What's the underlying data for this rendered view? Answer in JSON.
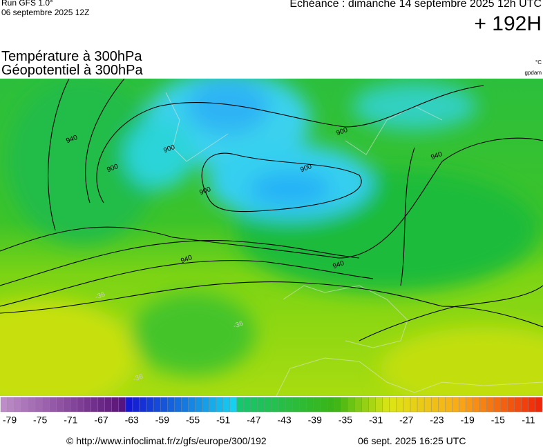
{
  "header": {
    "run": "Run GFS 1.0°",
    "run_date": "06 septembre 2025 12Z",
    "valid": "Echéance : dimanche 14 septembre 2025 12h UTC",
    "lead": "+ 192H",
    "title_1": "Température à 300hPa",
    "title_2": "Géopotentiel à 300hPa",
    "unit_1": "°C",
    "unit_2": "gpdam"
  },
  "map": {
    "contour_labels": [
      "940",
      "900",
      "900",
      "900",
      "900",
      "900",
      "940",
      "940",
      "940",
      "-36",
      "-36",
      "-36"
    ]
  },
  "legend": {
    "labels": [
      -79,
      -75,
      -71,
      -67,
      -63,
      -59,
      -55,
      -51,
      -47,
      -43,
      -39,
      -35,
      -31,
      -27,
      -23,
      -19,
      -15,
      -11
    ]
  },
  "footer": {
    "source": "© http://www.infoclimat.fr/z/gfs/europe/300/192",
    "generated": "06 sept. 2025 16:25 UTC"
  }
}
